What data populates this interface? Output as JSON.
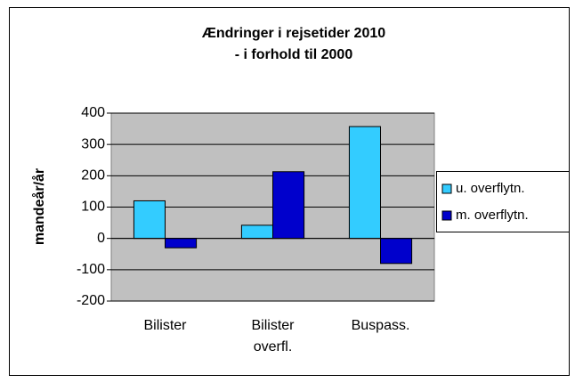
{
  "chart_data": {
    "type": "bar",
    "title": [
      "Ændringer i rejsetider 2010",
      "- i forhold til 2000"
    ],
    "y_label": "mandeår/år",
    "categories": [
      [
        "Bilister"
      ],
      [
        "Bilister",
        "overfl."
      ],
      [
        "Buspass."
      ]
    ],
    "series": [
      {
        "name": "u. overflytn.",
        "color": "#33ccff",
        "values": [
          120,
          42,
          357
        ]
      },
      {
        "name": "m. overflytn.",
        "color": "#0000cc",
        "values": [
          -30,
          213,
          -80
        ]
      }
    ],
    "ylim": [
      -200,
      400
    ],
    "yticks": [
      -200,
      -100,
      0,
      100,
      200,
      300,
      400
    ],
    "grid": true,
    "legend": "right"
  }
}
